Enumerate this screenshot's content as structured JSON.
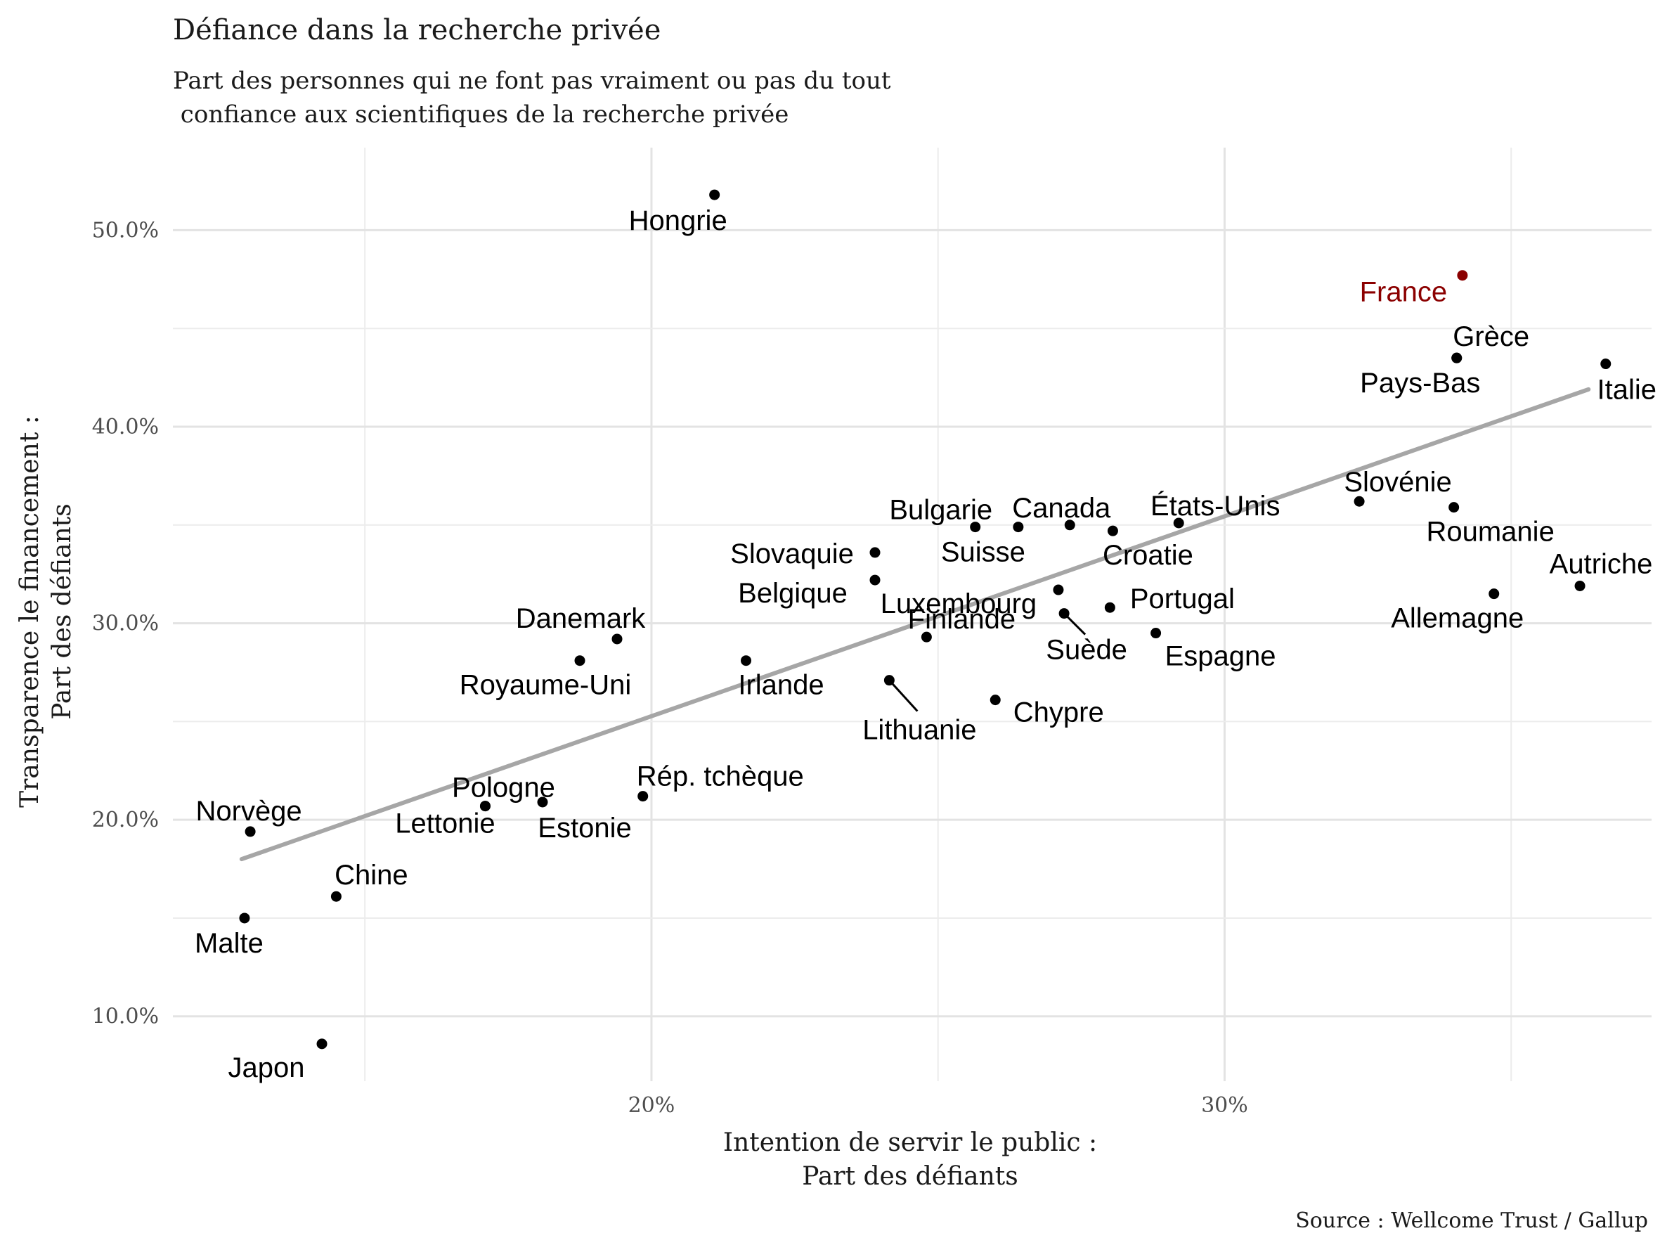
{
  "chart_data": {
    "type": "scatter",
    "title": "Défiance dans la recherche privée",
    "subtitle_lines": [
      "Part des personnes qui ne font pas vraiment ou pas du tout",
      " confiance aux scientifiques de la recherche privée"
    ],
    "xlabel_lines": [
      "Intention de servir le public :",
      "Part des défiants"
    ],
    "ylabel_lines": [
      "Transparence le financement :",
      "Part des défiants"
    ],
    "caption": "Source : Wellcome Trust / Gallup",
    "x_ticks": [
      {
        "value": 0.2,
        "label": "20%"
      },
      {
        "value": 0.3,
        "label": "30%"
      }
    ],
    "y_ticks": [
      {
        "value": 0.1,
        "label": "10.0%"
      },
      {
        "value": 0.2,
        "label": "20.0%"
      },
      {
        "value": 0.3,
        "label": "30.0%"
      },
      {
        "value": 0.4,
        "label": "40.0%"
      },
      {
        "value": 0.5,
        "label": "50.0%"
      }
    ],
    "xlim": [
      0.1165,
      0.3745
    ],
    "ylim": [
      0.067,
      0.542
    ],
    "grid": true,
    "highlight_color": "#8b0000",
    "point_color": "#000000",
    "trend_color": "#a6a6a6",
    "trend_line": {
      "x": [
        0.1285,
        0.3635
      ],
      "y": [
        0.18,
        0.419
      ]
    },
    "points": [
      {
        "label": "Hongrie",
        "x": 0.211,
        "y": 0.518
      },
      {
        "label": "France",
        "x": 0.3415,
        "y": 0.477,
        "highlight": true
      },
      {
        "label": "Grèce",
        "x": 0.3405,
        "y": 0.435
      },
      {
        "label": "Italie",
        "x": 0.3665,
        "y": 0.432
      },
      {
        "label": "Pays-Bas",
        "x": 0.3405,
        "y": 0.435
      },
      {
        "label": "Slovénie",
        "x": 0.3235,
        "y": 0.362
      },
      {
        "label": "Roumanie",
        "x": 0.34,
        "y": 0.359
      },
      {
        "label": "États-Unis",
        "x": 0.292,
        "y": 0.351
      },
      {
        "label": "Canada",
        "x": 0.273,
        "y": 0.35
      },
      {
        "label": "Croatie",
        "x": 0.2805,
        "y": 0.347
      },
      {
        "label": "Bulgarie",
        "x": 0.2565,
        "y": 0.349
      },
      {
        "label": "Suisse",
        "x": 0.264,
        "y": 0.349
      },
      {
        "label": "Slovaquie",
        "x": 0.239,
        "y": 0.336
      },
      {
        "label": "Autriche",
        "x": 0.362,
        "y": 0.319
      },
      {
        "label": "Belgique",
        "x": 0.239,
        "y": 0.322
      },
      {
        "label": "Allemagne",
        "x": 0.347,
        "y": 0.315
      },
      {
        "label": "Luxembourg",
        "x": 0.271,
        "y": 0.317
      },
      {
        "label": "Suède",
        "x": 0.272,
        "y": 0.305
      },
      {
        "label": "Portugal",
        "x": 0.28,
        "y": 0.308
      },
      {
        "label": "Espagne",
        "x": 0.288,
        "y": 0.295
      },
      {
        "label": "Danemark",
        "x": 0.194,
        "y": 0.292
      },
      {
        "label": "Finlande",
        "x": 0.248,
        "y": 0.293
      },
      {
        "label": "Royaume-Uni",
        "x": 0.1875,
        "y": 0.281
      },
      {
        "label": "Irlande",
        "x": 0.2165,
        "y": 0.281
      },
      {
        "label": "Lithuanie",
        "x": 0.2415,
        "y": 0.271
      },
      {
        "label": "Chypre",
        "x": 0.26,
        "y": 0.261
      },
      {
        "label": "Rép. tchèque",
        "x": 0.1985,
        "y": 0.212
      },
      {
        "label": "Pologne",
        "x": 0.171,
        "y": 0.207
      },
      {
        "label": "Lettonie",
        "x": 0.171,
        "y": 0.207
      },
      {
        "label": "Estonie",
        "x": 0.181,
        "y": 0.209
      },
      {
        "label": "Norvège",
        "x": 0.13,
        "y": 0.194
      },
      {
        "label": "Chine",
        "x": 0.145,
        "y": 0.161
      },
      {
        "label": "Malte",
        "x": 0.129,
        "y": 0.15
      },
      {
        "label": "Japon",
        "x": 0.1425,
        "y": 0.086
      }
    ]
  }
}
